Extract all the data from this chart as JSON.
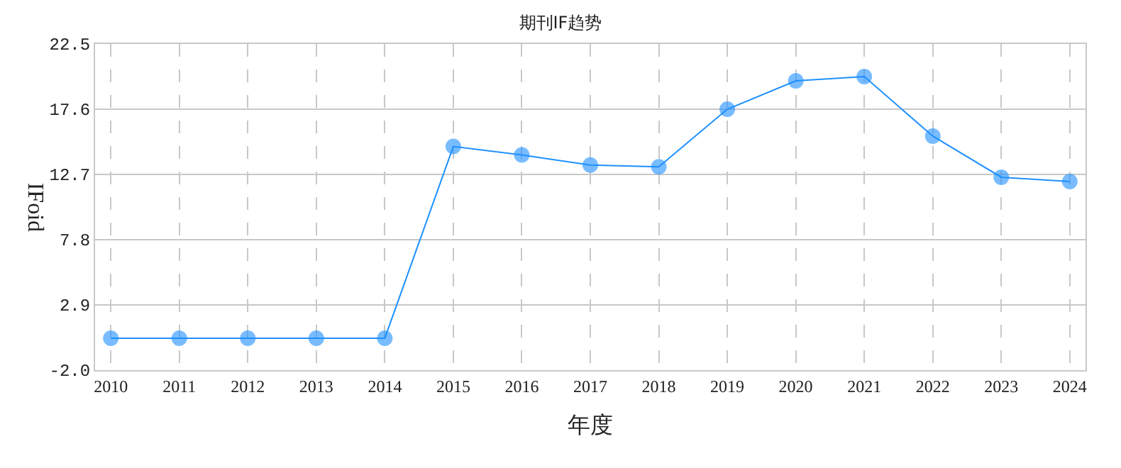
{
  "chart_data": {
    "type": "line",
    "title": "期刊IF趋势",
    "xlabel": "年度",
    "ylabel": "IFoid",
    "categories": [
      "2010",
      "2011",
      "2012",
      "2013",
      "2014",
      "2015",
      "2016",
      "2017",
      "2018",
      "2019",
      "2020",
      "2021",
      "2022",
      "2023",
      "2024"
    ],
    "series": [
      {
        "color": "#1e90ff",
        "values": [
          0.4,
          0.4,
          0.4,
          0.4,
          0.4,
          14.8,
          14.16,
          13.41,
          13.27,
          17.6,
          19.73,
          20.05,
          15.58,
          12.49,
          12.17
        ]
      }
    ],
    "ylim": [
      -2.0,
      22.5
    ],
    "yticks": [
      {
        "value": -2.0,
        "label": "-2.0"
      },
      2.9,
      7.8,
      12.7,
      17.6,
      22.5
    ],
    "grid": true,
    "marker": "circle",
    "line_style": "solid",
    "legend": false
  }
}
